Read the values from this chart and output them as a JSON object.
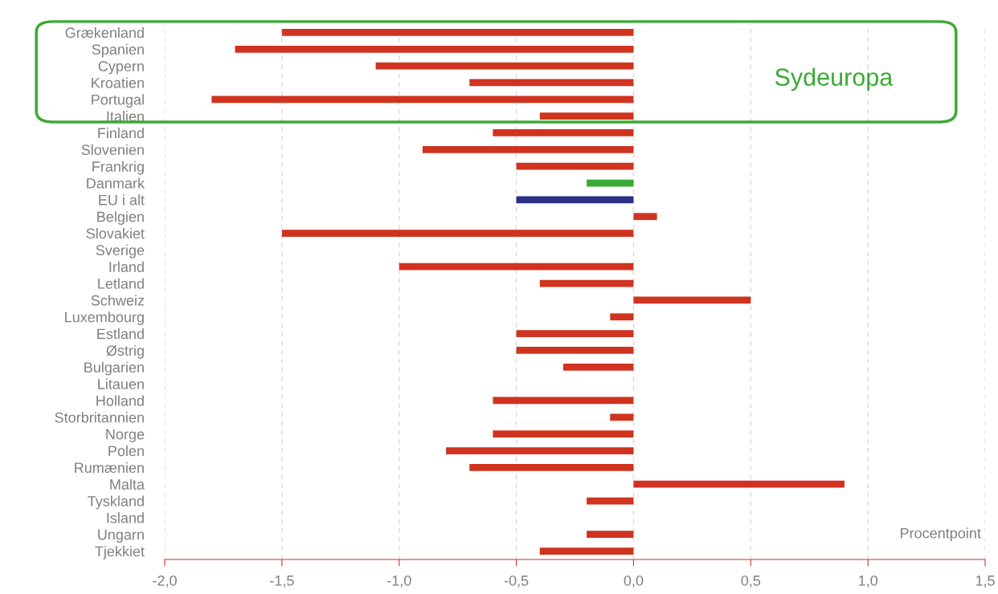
{
  "chart_data": {
    "type": "bar",
    "orientation": "horizontal",
    "xlabel": "Procentpoint",
    "annotations": [
      "Sydeuropa"
    ],
    "categories": [
      "Grækenland",
      "Spanien",
      "Cypern",
      "Kroatien",
      "Portugal",
      "Italien",
      "Finland",
      "Slovenien",
      "Frankrig",
      "Danmark",
      "EU i alt",
      "Belgien",
      "Slovakiet",
      "Sverige",
      "Irland",
      "Letland",
      "Schweiz",
      "Luxembourg",
      "Estland",
      "Østrig",
      "Bulgarien",
      "Litauen",
      "Holland",
      "Storbritannien",
      "Norge",
      "Polen",
      "Rumænien",
      "Malta",
      "Tyskland",
      "Island",
      "Ungarn",
      "Tjekkiet"
    ],
    "values": [
      -1.5,
      -1.7,
      -1.1,
      -0.7,
      -1.8,
      -0.4,
      -0.6,
      -0.9,
      -0.5,
      -0.2,
      -0.5,
      0.1,
      -1.5,
      0,
      -1.0,
      -0.4,
      0.5,
      -0.1,
      -0.5,
      -0.5,
      -0.3,
      0,
      -0.6,
      -0.1,
      -0.6,
      -0.8,
      -0.7,
      0.9,
      -0.2,
      0,
      -0.2,
      -0.4
    ],
    "colors": [
      "#d0331f",
      "#d0331f",
      "#d0331f",
      "#d0331f",
      "#d0331f",
      "#d0331f",
      "#d0331f",
      "#d0331f",
      "#d0331f",
      "#3aaa35",
      "#2b2f86",
      "#d0331f",
      "#d0331f",
      "#d0331f",
      "#d0331f",
      "#d0331f",
      "#d0331f",
      "#d0331f",
      "#d0331f",
      "#d0331f",
      "#d0331f",
      "#d0331f",
      "#d0331f",
      "#d0331f",
      "#d0331f",
      "#d0331f",
      "#d0331f",
      "#d0331f",
      "#d0331f",
      "#d0331f",
      "#d0331f",
      "#d0331f"
    ],
    "xlim": [
      -2.0,
      1.5
    ],
    "xticks": [
      {
        "value": -2.0,
        "label": "-2,0"
      },
      {
        "value": -1.5,
        "label": "-1,5"
      },
      {
        "value": -1.0,
        "label": "-1,0"
      },
      {
        "value": -0.5,
        "label": "-0,5"
      },
      {
        "value": 0.0,
        "label": "0,0"
      },
      {
        "value": 0.5,
        "label": "0,5"
      },
      {
        "value": 1.0,
        "label": "1,0"
      },
      {
        "value": 1.5,
        "label": "1,5"
      }
    ],
    "grid": "x",
    "legend": false
  }
}
